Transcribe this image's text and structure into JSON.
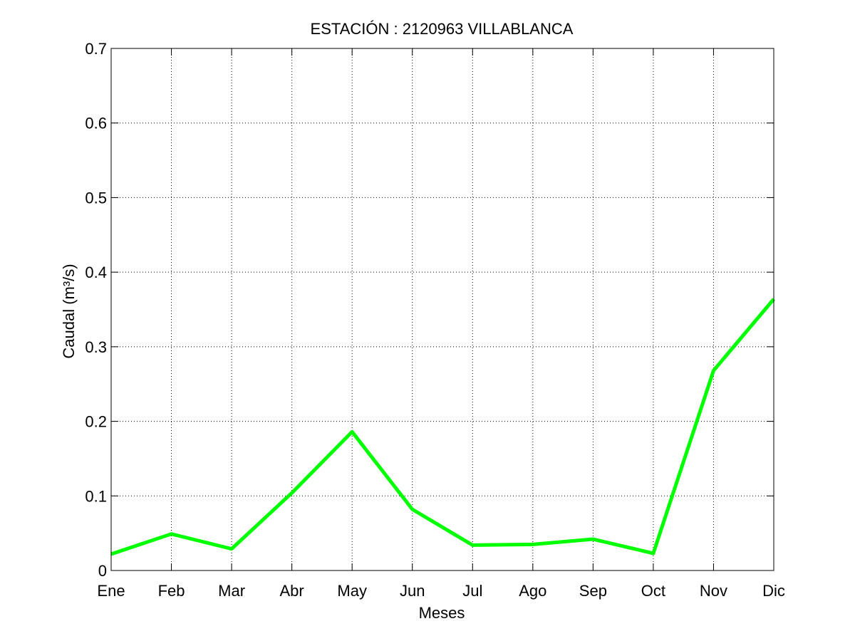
{
  "chart_data": {
    "type": "line",
    "title": "ESTACIÓN :  2120963  VILLABLANCA",
    "xlabel": "Meses",
    "ylabel": "Caudal (m³/s)",
    "categories": [
      "Ene",
      "Feb",
      "Mar",
      "Abr",
      "May",
      "Jun",
      "Jul",
      "Ago",
      "Sep",
      "Oct",
      "Nov",
      "Dic"
    ],
    "series": [
      {
        "values": [
          0.022,
          0.049,
          0.029,
          0.104,
          0.186,
          0.082,
          0.034,
          0.035,
          0.042,
          0.023,
          0.268,
          0.364
        ],
        "color": "#00ff00"
      }
    ],
    "ylim": [
      0,
      0.7
    ],
    "yticks": [
      0,
      0.1,
      0.2,
      0.3,
      0.4,
      0.5,
      0.6,
      0.7
    ],
    "ytick_labels": [
      "0",
      "0.1",
      "0.2",
      "0.3",
      "0.4",
      "0.5",
      "0.6",
      "0.7"
    ],
    "grid": true
  }
}
